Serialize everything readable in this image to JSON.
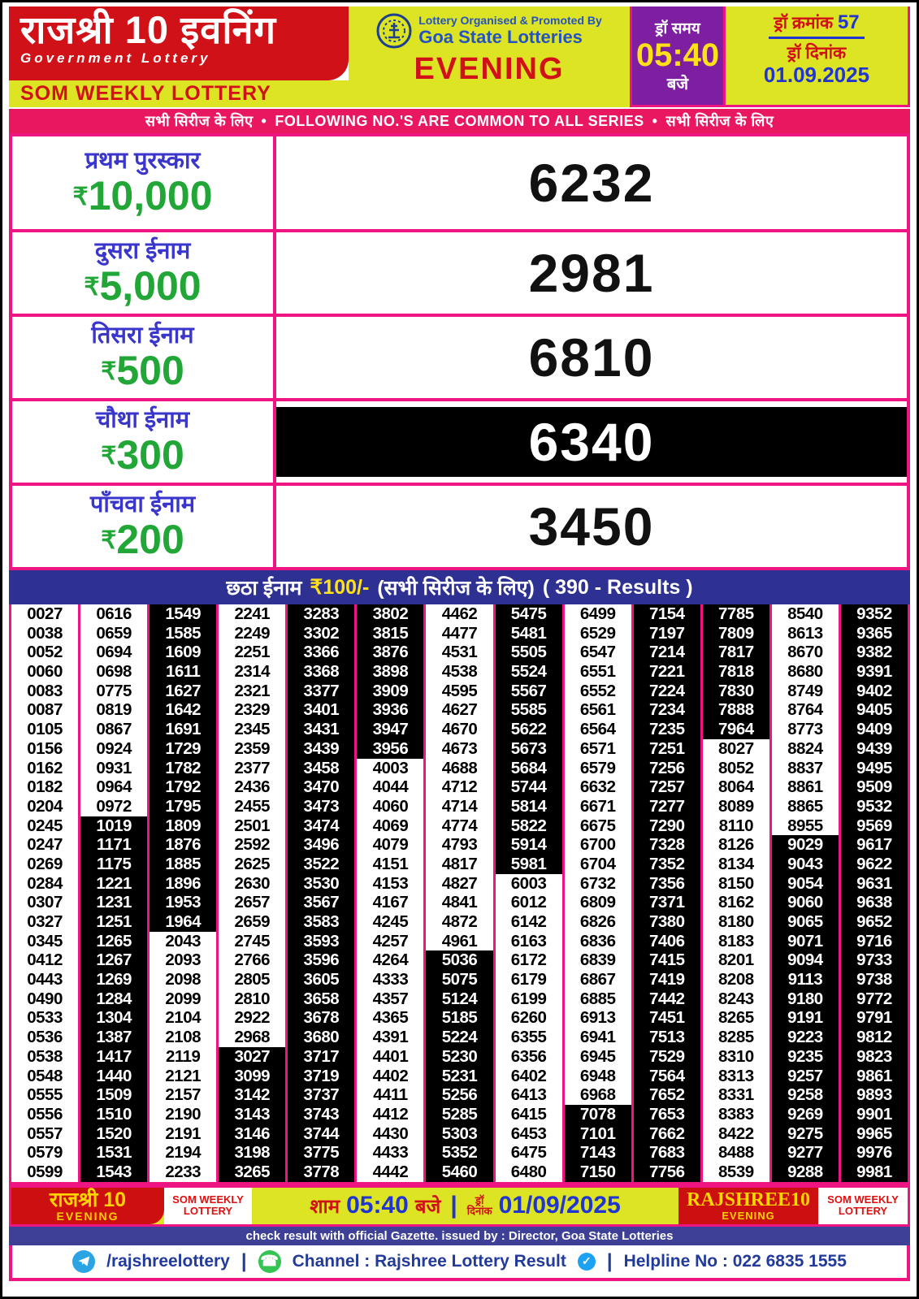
{
  "header": {
    "title_hindi": "राजश्री 10 इवनिंग",
    "subtitle": "Government Lottery",
    "weekly": "SOM WEEKLY LOTTERY",
    "organised_by": "Lottery Organised & Promoted By",
    "organiser": "Goa State Lotteries",
    "session": "EVENING",
    "draw_time_label": "ड्रॉ समय",
    "draw_time": "05:40",
    "draw_time_suffix": "बजे",
    "draw_no_label": "ड्रॉ क्रमांक",
    "draw_no": "57",
    "draw_date_label": "ड्रॉ दिनांक",
    "draw_date": "01.09.2025"
  },
  "series_banner": {
    "hindi_left": "सभी सिरीज के लिए",
    "bullet": "•",
    "english": "FOLLOWING NO.'S ARE COMMON TO ALL SERIES",
    "hindi_right": "सभी सिरीज के लिए"
  },
  "prizes": [
    {
      "label": "प्रथम पुरस्कार",
      "currency": "₹",
      "amount": "10,000",
      "number": "6232",
      "highlight": false
    },
    {
      "label": "दुसरा ईनाम",
      "currency": "₹",
      "amount": "5,000",
      "number": "2981",
      "highlight": false
    },
    {
      "label": "तिसरा ईनाम",
      "currency": "₹",
      "amount": "500",
      "number": "6810",
      "highlight": false
    },
    {
      "label": "चौथा ईनाम",
      "currency": "₹",
      "amount": "300",
      "number": "6340",
      "highlight": true
    },
    {
      "label": "पाँचवा ईनाम",
      "currency": "₹",
      "amount": "200",
      "number": "3450",
      "highlight": false
    }
  ],
  "sixth_prize": {
    "label": "छठा ईनाम",
    "amount": "₹100/-",
    "note": "(सभी सिरीज के लिए)",
    "results_count": "( 390 - Results )"
  },
  "grid": {
    "columns": [
      [
        "0027",
        "0038",
        "0052",
        "0060",
        "0083",
        "0087",
        "0105",
        "0156",
        "0162",
        "0182",
        "0204",
        "0245",
        "0247",
        "0269",
        "0284",
        "0307",
        "0327",
        "0345",
        "0412",
        "0443",
        "0490",
        "0533",
        "0536",
        "0538",
        "0548",
        "0555",
        "0556",
        "0557",
        "0579",
        "0599"
      ],
      [
        "0616",
        "0659",
        "0694",
        "0698",
        "0775",
        "0819",
        "0867",
        "0924",
        "0931",
        "0964",
        "0972",
        "1019",
        "1171",
        "1175",
        "1221",
        "1231",
        "1251",
        "1265",
        "1267",
        "1269",
        "1284",
        "1304",
        "1387",
        "1417",
        "1440",
        "1509",
        "1510",
        "1520",
        "1531",
        "1543"
      ],
      [
        "1549",
        "1585",
        "1609",
        "1611",
        "1627",
        "1642",
        "1691",
        "1729",
        "1782",
        "1792",
        "1795",
        "1809",
        "1876",
        "1885",
        "1896",
        "1953",
        "1964",
        "2043",
        "2093",
        "2098",
        "2099",
        "2104",
        "2108",
        "2119",
        "2121",
        "2157",
        "2190",
        "2191",
        "2194",
        "2233"
      ],
      [
        "2241",
        "2249",
        "2251",
        "2314",
        "2321",
        "2329",
        "2345",
        "2359",
        "2377",
        "2436",
        "2455",
        "2501",
        "2592",
        "2625",
        "2630",
        "2657",
        "2659",
        "2745",
        "2766",
        "2805",
        "2810",
        "2922",
        "2968",
        "3027",
        "3099",
        "3142",
        "3143",
        "3146",
        "3198",
        "3265"
      ],
      [
        "3283",
        "3302",
        "3366",
        "3368",
        "3377",
        "3401",
        "3431",
        "3439",
        "3458",
        "3470",
        "3473",
        "3474",
        "3496",
        "3522",
        "3530",
        "3567",
        "3583",
        "3593",
        "3596",
        "3605",
        "3658",
        "3678",
        "3680",
        "3717",
        "3719",
        "3737",
        "3743",
        "3744",
        "3775",
        "3778"
      ],
      [
        "3802",
        "3815",
        "3876",
        "3898",
        "3909",
        "3936",
        "3947",
        "3956",
        "4003",
        "4044",
        "4060",
        "4069",
        "4079",
        "4151",
        "4153",
        "4167",
        "4245",
        "4257",
        "4264",
        "4333",
        "4357",
        "4365",
        "4391",
        "4401",
        "4402",
        "4411",
        "4412",
        "4430",
        "4433",
        "4442"
      ],
      [
        "4462",
        "4477",
        "4531",
        "4538",
        "4595",
        "4627",
        "4670",
        "4673",
        "4688",
        "4712",
        "4714",
        "4774",
        "4793",
        "4817",
        "4827",
        "4841",
        "4872",
        "4961",
        "5036",
        "5075",
        "5124",
        "5185",
        "5224",
        "5230",
        "5231",
        "5256",
        "5285",
        "5303",
        "5352",
        "5460"
      ],
      [
        "5475",
        "5481",
        "5505",
        "5524",
        "5567",
        "5585",
        "5622",
        "5673",
        "5684",
        "5744",
        "5814",
        "5822",
        "5914",
        "5981",
        "6003",
        "6012",
        "6142",
        "6163",
        "6172",
        "6179",
        "6199",
        "6260",
        "6355",
        "6356",
        "6402",
        "6413",
        "6415",
        "6453",
        "6475",
        "6480"
      ],
      [
        "6499",
        "6529",
        "6547",
        "6551",
        "6552",
        "6561",
        "6564",
        "6571",
        "6579",
        "6632",
        "6671",
        "6675",
        "6700",
        "6704",
        "6732",
        "6809",
        "6826",
        "6836",
        "6839",
        "6867",
        "6885",
        "6913",
        "6941",
        "6945",
        "6948",
        "6968",
        "7078",
        "7101",
        "7143",
        "7150"
      ],
      [
        "7154",
        "7197",
        "7214",
        "7221",
        "7224",
        "7234",
        "7235",
        "7251",
        "7256",
        "7257",
        "7277",
        "7290",
        "7328",
        "7352",
        "7356",
        "7371",
        "7380",
        "7406",
        "7415",
        "7419",
        "7442",
        "7451",
        "7513",
        "7529",
        "7564",
        "7652",
        "7653",
        "7662",
        "7683",
        "7756"
      ],
      [
        "7785",
        "7809",
        "7817",
        "7818",
        "7830",
        "7888",
        "7964",
        "8027",
        "8052",
        "8064",
        "8089",
        "8110",
        "8126",
        "8134",
        "8150",
        "8162",
        "8180",
        "8183",
        "8201",
        "8208",
        "8243",
        "8265",
        "8285",
        "8310",
        "8313",
        "8331",
        "8383",
        "8422",
        "8488",
        "8539"
      ],
      [
        "8540",
        "8613",
        "8670",
        "8680",
        "8749",
        "8764",
        "8773",
        "8824",
        "8837",
        "8861",
        "8865",
        "8955",
        "9029",
        "9043",
        "9054",
        "9060",
        "9065",
        "9071",
        "9094",
        "9113",
        "9180",
        "9191",
        "9223",
        "9235",
        "9257",
        "9258",
        "9269",
        "9275",
        "9277",
        "9288"
      ],
      [
        "9352",
        "9365",
        "9382",
        "9391",
        "9402",
        "9405",
        "9409",
        "9439",
        "9495",
        "9509",
        "9532",
        "9569",
        "9617",
        "9622",
        "9631",
        "9638",
        "9652",
        "9716",
        "9733",
        "9738",
        "9772",
        "9791",
        "9812",
        "9823",
        "9861",
        "9893",
        "9901",
        "9965",
        "9976",
        "9981"
      ]
    ],
    "highlight_ranges": [
      {
        "col": 1,
        "from": 11,
        "to": 29
      },
      {
        "col": 2,
        "from": 0,
        "to": 16
      },
      {
        "col": 3,
        "from": 23,
        "to": 29
      },
      {
        "col": 4,
        "from": 0,
        "to": 29
      },
      {
        "col": 5,
        "from": 0,
        "to": 7
      },
      {
        "col": 6,
        "from": 18,
        "to": 29
      },
      {
        "col": 7,
        "from": 0,
        "to": 13
      },
      {
        "col": 8,
        "from": 26,
        "to": 29
      },
      {
        "col": 9,
        "from": 0,
        "to": 29
      },
      {
        "col": 10,
        "from": 0,
        "to": 6
      },
      {
        "col": 11,
        "from": 12,
        "to": 29
      },
      {
        "col": 12,
        "from": 0,
        "to": 29
      }
    ]
  },
  "footer": {
    "left_title": "राजश्री 10",
    "left_sub": "EVENING",
    "som_left": "SOM WEEKLY LOTTERY",
    "time_prefix": "शाम",
    "time": "05:40",
    "time_suffix": "बजे",
    "divider": "|",
    "date_label_1": "ड्रॉ",
    "date_label_2": "दिनांक",
    "date": "01/09/2025",
    "right_title": "RAJSHREE10",
    "right_sub": "EVENING",
    "som_right": "SOM WEEKLY LOTTERY"
  },
  "gazette_note": "check result with official Gazette. issued by : Director, Goa State Lotteries",
  "contact": {
    "telegram_handle": "/rajshreelottery",
    "separator": "|",
    "whatsapp_channel": "Channel : Rajshree Lottery Result",
    "verified_check": "✓",
    "helpline": "Helpline No : 022 6835 1555"
  }
}
